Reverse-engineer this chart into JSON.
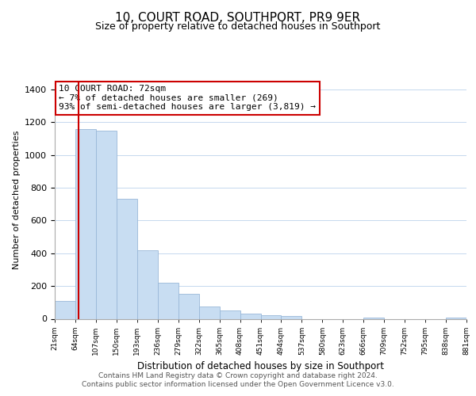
{
  "title": "10, COURT ROAD, SOUTHPORT, PR9 9ER",
  "subtitle": "Size of property relative to detached houses in Southport",
  "xlabel": "Distribution of detached houses by size in Southport",
  "ylabel": "Number of detached properties",
  "bar_values": [
    110,
    1160,
    1150,
    730,
    420,
    220,
    150,
    75,
    50,
    30,
    20,
    15,
    0,
    0,
    0,
    5,
    0,
    0,
    0,
    5
  ],
  "bar_labels": [
    "21sqm",
    "64sqm",
    "107sqm",
    "150sqm",
    "193sqm",
    "236sqm",
    "279sqm",
    "322sqm",
    "365sqm",
    "408sqm",
    "451sqm",
    "494sqm",
    "537sqm",
    "580sqm",
    "623sqm",
    "666sqm",
    "709sqm",
    "752sqm",
    "795sqm",
    "838sqm",
    "881sqm"
  ],
  "bar_color": "#c8ddf2",
  "bar_edge_color": "#9ab8d8",
  "red_line_bar_index": 1,
  "annotation_title": "10 COURT ROAD: 72sqm",
  "annotation_line1": "← 7% of detached houses are smaller (269)",
  "annotation_line2": "93% of semi-detached houses are larger (3,819) →",
  "annotation_box_facecolor": "#ffffff",
  "annotation_box_edgecolor": "#cc0000",
  "ylim": [
    0,
    1450
  ],
  "yticks": [
    0,
    200,
    400,
    600,
    800,
    1000,
    1200,
    1400
  ],
  "footer_line1": "Contains HM Land Registry data © Crown copyright and database right 2024.",
  "footer_line2": "Contains public sector information licensed under the Open Government Licence v3.0.",
  "grid_color": "#c5d8ee",
  "title_fontsize": 11,
  "subtitle_fontsize": 9
}
